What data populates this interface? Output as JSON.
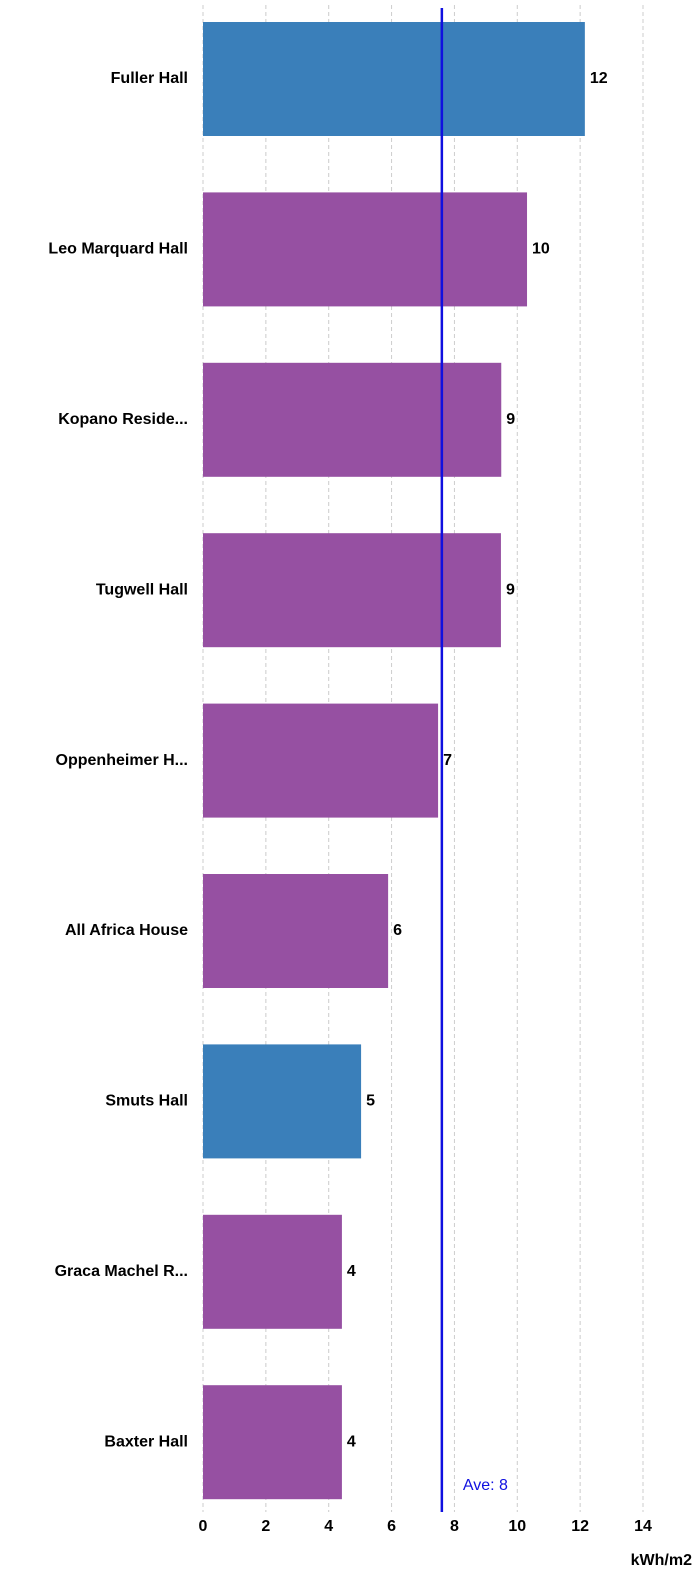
{
  "chart_data": {
    "type": "hbar",
    "categories": [
      "Fuller Hall",
      "Leo Marquard Hall",
      "Kopano Reside...",
      "Tugwell Hall",
      "Oppenheimer H...",
      "All Africa House",
      "Smuts Hall",
      "Graca Machel R...",
      "Baxter Hall"
    ],
    "values": [
      12.15,
      10.31,
      9.49,
      9.48,
      7.48,
      5.89,
      5.03,
      4.42,
      4.42
    ],
    "value_labels": [
      "12",
      "10",
      "9",
      "9",
      "7",
      "6",
      "5",
      "4",
      "4"
    ],
    "colors": [
      "#3a7fba",
      "#9650a2",
      "#9650a2",
      "#9650a2",
      "#9650a2",
      "#9650a2",
      "#3a7fba",
      "#9650a2",
      "#9650a2"
    ],
    "xlim": [
      0,
      14
    ],
    "xticks": [
      0,
      2,
      4,
      6,
      8,
      10,
      12,
      14
    ],
    "grid": true,
    "xlabel": "kWh/m2",
    "average": {
      "value": 7.6,
      "label": "Ave: 8",
      "color": "#1010e0"
    }
  }
}
